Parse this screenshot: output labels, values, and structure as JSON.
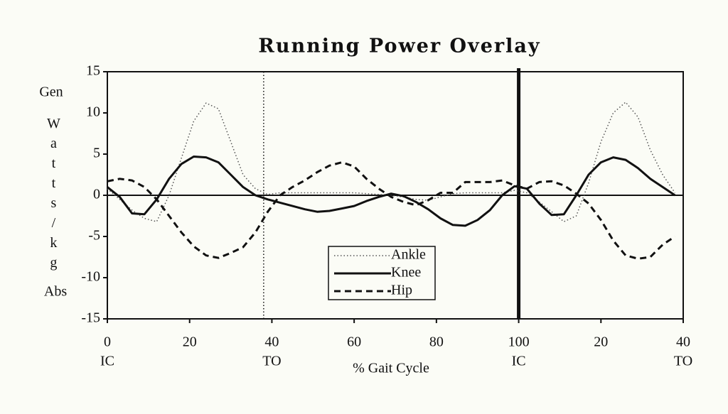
{
  "chart_data": {
    "type": "line",
    "title": "Running Power Overlay",
    "xlabel": "% Gait Cycle",
    "ylabel": "Watts/kg",
    "ylabel_top": "Gen",
    "ylabel_bottom": "Abs",
    "x": [
      0,
      3,
      6,
      9,
      12,
      15,
      18,
      21,
      24,
      27,
      30,
      33,
      36,
      39,
      42,
      45,
      48,
      51,
      54,
      57,
      60,
      63,
      66,
      69,
      72,
      75,
      78,
      81,
      84,
      87,
      90,
      93,
      96,
      99,
      102,
      105,
      108,
      111,
      114,
      117,
      120,
      123,
      126,
      129,
      132,
      135,
      138
    ],
    "series": [
      {
        "name": "Ankle",
        "color": "#555555",
        "style": "dotted",
        "values": [
          0.8,
          -0.5,
          -1.8,
          -2.8,
          -3.2,
          0,
          4.5,
          9,
          11.2,
          10.5,
          6.5,
          2.5,
          0.8,
          0.1,
          0.3,
          0.3,
          0.3,
          0.3,
          0.3,
          0.3,
          0.3,
          0.2,
          0.1,
          0,
          -0.2,
          -0.5,
          -0.6,
          -0.2,
          0.2,
          0.3,
          0.3,
          0.3,
          0.3,
          0.6,
          0.3,
          -0.8,
          -2,
          -3.2,
          -2.5,
          1.5,
          6.5,
          10,
          11.3,
          9.5,
          5.5,
          2.5,
          0.3
        ]
      },
      {
        "name": "Knee",
        "color": "#111111",
        "style": "solid",
        "values": [
          1,
          -0.2,
          -2.2,
          -2.3,
          -0.5,
          2,
          3.8,
          4.7,
          4.6,
          4,
          2.5,
          1,
          0,
          -0.5,
          -0.9,
          -1.3,
          -1.7,
          -2,
          -1.9,
          -1.6,
          -1.3,
          -0.7,
          -0.2,
          0.2,
          -0.1,
          -0.8,
          -1.7,
          -2.8,
          -3.6,
          -3.7,
          -3,
          -1.8,
          0,
          1.1,
          0.8,
          -1,
          -2.4,
          -2.3,
          0,
          2.5,
          4,
          4.6,
          4.3,
          3.3,
          2,
          1,
          0
        ]
      },
      {
        "name": "Hip",
        "color": "#111111",
        "style": "dashed",
        "values": [
          1.7,
          2,
          1.8,
          1,
          -0.5,
          -2.5,
          -4.5,
          -6.2,
          -7.3,
          -7.6,
          -7,
          -6.3,
          -4.5,
          -2,
          0,
          1,
          1.8,
          2.8,
          3.6,
          4,
          3.5,
          2,
          0.8,
          -0.2,
          -0.8,
          -1.2,
          -0.6,
          0.3,
          0.3,
          1.6,
          1.6,
          1.6,
          1.8,
          1.2,
          0.8,
          1.6,
          1.7,
          1.2,
          0.2,
          -1,
          -3,
          -5.5,
          -7.3,
          -7.7,
          -7.5,
          -6,
          -5
        ]
      }
    ],
    "xlim": [
      0,
      140
    ],
    "ylim": [
      -15,
      15
    ],
    "xticks": [
      0,
      20,
      40,
      60,
      80,
      100,
      {
        "value": 120,
        "label": "20"
      },
      {
        "value": 140,
        "label": "40"
      }
    ],
    "yticks": [
      -15,
      -10,
      -5,
      0,
      5,
      10,
      15
    ],
    "events": [
      {
        "value": 0,
        "label": "IC"
      },
      {
        "value": 40,
        "label": "TO"
      },
      {
        "value": 100,
        "label": "IC"
      },
      {
        "value": 140,
        "label": "TO"
      }
    ],
    "vlines": [
      {
        "value": 38,
        "style": "dotted"
      },
      {
        "value": 100,
        "style": "solid"
      }
    ],
    "zero_line": true,
    "legend": "lower center"
  }
}
